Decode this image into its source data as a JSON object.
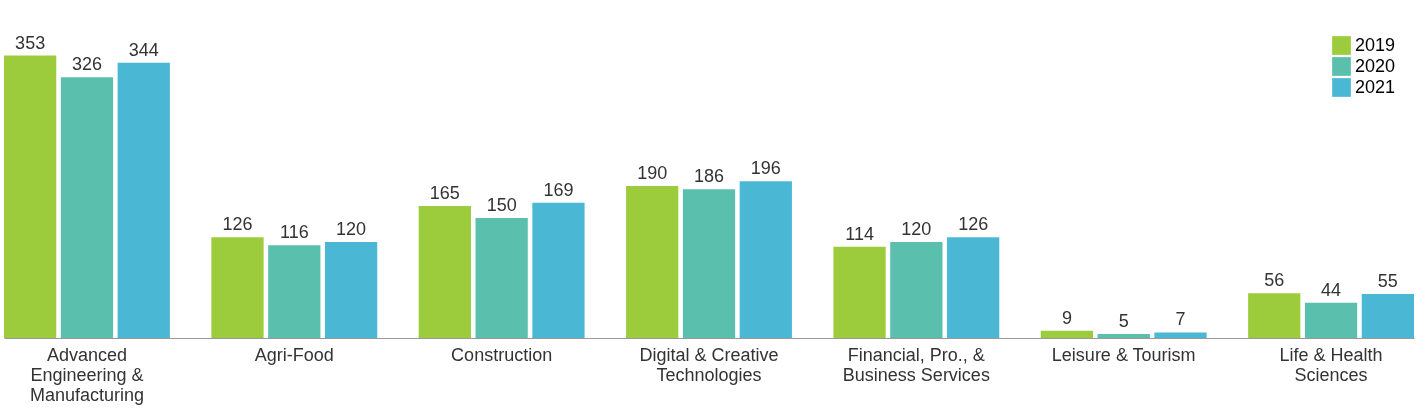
{
  "chart_data": {
    "type": "bar",
    "categories": [
      "Advanced Engineering & Manufacturing",
      "Agri-Food",
      "Construction",
      "Digital & Creative Technologies",
      "Financial, Pro., & Business Services",
      "Leisure & Tourism",
      "Life & Health Sciences"
    ],
    "series": [
      {
        "name": "2019",
        "color": "#9ccc3c",
        "values": [
          353,
          126,
          165,
          190,
          114,
          9,
          56
        ]
      },
      {
        "name": "2020",
        "color": "#5bbfad",
        "values": [
          326,
          116,
          150,
          186,
          120,
          5,
          44
        ]
      },
      {
        "name": "2021",
        "color": "#4ab8d4",
        "values": [
          344,
          120,
          169,
          196,
          126,
          7,
          55
        ]
      }
    ],
    "data_labels": true,
    "legend": "top right",
    "grid": false
  }
}
